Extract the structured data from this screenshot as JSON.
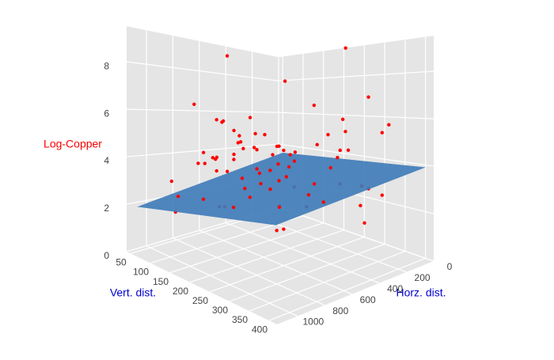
{
  "chart_data": {
    "type": "scatter3d",
    "x_label": "Horz. dist.",
    "y_label": "Vert. dist.",
    "z_label": "Log-Copper",
    "xlim": [
      0,
      1150
    ],
    "ylim": [
      40,
      420
    ],
    "zlim": [
      0,
      9.5
    ],
    "xticks": [
      0,
      200,
      400,
      600,
      800,
      1000
    ],
    "yticks": [
      50,
      100,
      150,
      200,
      250,
      300,
      350,
      400
    ],
    "zticks": [
      0,
      2,
      4,
      6,
      8
    ],
    "grid": true,
    "series": [
      {
        "name": "Log-Copper",
        "color": "#ff0000",
        "x": [
          120,
          340,
          560,
          780,
          900,
          1050,
          210,
          430,
          650,
          870,
          300,
          520,
          740,
          960,
          150,
          380,
          610,
          830,
          1000,
          260,
          480,
          700,
          920,
          180,
          400,
          620,
          840,
          1080,
          330,
          550,
          770,
          990,
          90,
          310,
          530,
          750,
          970,
          240,
          460,
          680,
          900,
          1120,
          360,
          580,
          800,
          1020,
          140,
          420,
          640,
          860,
          280,
          500,
          720,
          940,
          200,
          450,
          670,
          890,
          1060,
          350,
          570,
          790,
          1010,
          110,
          390,
          610,
          830,
          260,
          480,
          700,
          600,
          450,
          800,
          550,
          700,
          300,
          650,
          500,
          850,
          400
        ],
        "y": [
          80,
          150,
          220,
          300,
          380,
          120,
          260,
          340,
          90,
          180,
          310,
          70,
          200,
          360,
          240,
          130,
          280,
          390,
          160,
          330,
          100,
          250,
          210,
          370,
          60,
          190,
          320,
          140,
          270,
          350,
          110,
          230,
          290,
          170,
          60,
          400,
          250,
          320,
          80,
          210,
          150,
          300,
          380,
          130,
          260,
          190,
          340,
          90,
          230,
          310,
          170,
          370,
          120,
          280,
          200,
          60,
          350,
          240,
          140,
          300,
          180,
          390,
          220,
          330,
          110,
          260,
          160,
          290,
          70,
          210,
          250,
          200,
          300,
          150,
          180,
          350,
          280,
          220,
          120,
          240
        ],
        "z": [
          4.1,
          3.6,
          4.8,
          2.9,
          5.2,
          3.3,
          4.5,
          6.1,
          3.9,
          2.4,
          4.7,
          5.5,
          3.1,
          4.2,
          2.8,
          5.0,
          4.4,
          3.7,
          6.5,
          3.2,
          4.9,
          4.0,
          2.6,
          5.8,
          3.5,
          4.6,
          3.0,
          2.2,
          5.3,
          4.3,
          3.8,
          6.0,
          2.7,
          4.1,
          5.6,
          3.4,
          4.8,
          2.3,
          5.1,
          3.9,
          4.5,
          3.2,
          7.0,
          4.7,
          3.6,
          2.9,
          5.4,
          4.2,
          3.1,
          4.9,
          2.5,
          5.7,
          4.0,
          3.3,
          4.6,
          8.9,
          3.8,
          5.2,
          2.8,
          4.4,
          3.5,
          6.8,
          4.1,
          2.6,
          5.0,
          3.7,
          4.3,
          9.1,
          3.0,
          4.8,
          1.5,
          4.5,
          2.0,
          5.9,
          3.4,
          1.8,
          4.2,
          7.6,
          3.9,
          2.1
        ]
      }
    ],
    "surface": {
      "color": "#3d7ab8",
      "x": [
        0,
        1100
      ],
      "y": [
        50,
        400
      ],
      "z": [
        [
          3.5,
          3.9
        ],
        [
          1.9,
          3.0
        ]
      ]
    }
  }
}
